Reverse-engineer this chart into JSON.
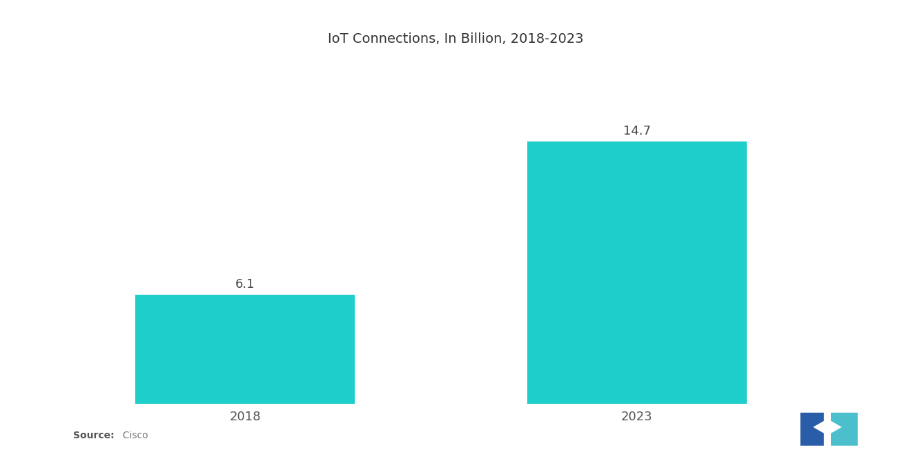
{
  "title": "IoT Connections, In Billion, 2018-2023",
  "categories": [
    "2018",
    "2023"
  ],
  "values": [
    6.1,
    14.7
  ],
  "bar_color": "#1ECECA",
  "bar_width": 0.28,
  "background_color": "#ffffff",
  "title_fontsize": 14,
  "label_fontsize": 13,
  "tick_fontsize": 13,
  "source_bold": "Source:",
  "source_normal": "  Cisco",
  "ylim": [
    0,
    18
  ],
  "xlim": [
    0.0,
    1.0
  ],
  "x_positions": [
    0.22,
    0.72
  ],
  "figsize": [
    13.2,
    6.65
  ],
  "dpi": 100,
  "logo_left_color": "#2A5DA8",
  "logo_right_color": "#4BBFCC"
}
